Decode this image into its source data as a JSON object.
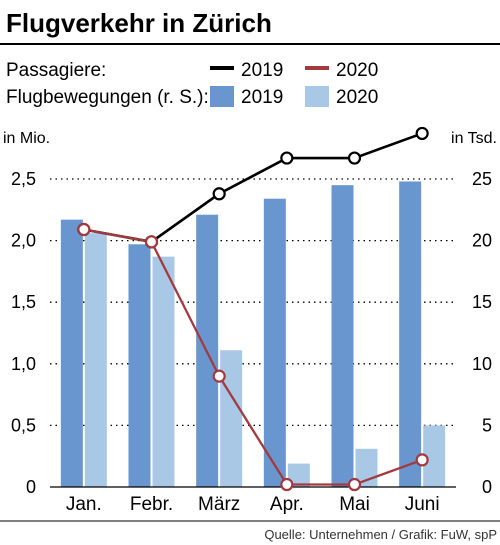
{
  "chart_data": {
    "type": "bar",
    "title": "Flugverkehr in Zürich",
    "categories": [
      "Jan.",
      "Febr.",
      "März",
      "Apr.",
      "Mai",
      "Juni"
    ],
    "legend": {
      "passengers_label": "Passagiere:",
      "movements_label": "Flugbewegungen (r. S.):"
    },
    "y_left": {
      "unit": "in Mio.",
      "range": [
        0,
        2.5
      ],
      "ticks": [
        "0",
        "0,5",
        "1,0",
        "1,5",
        "2,0",
        "2,5"
      ]
    },
    "y_right": {
      "unit": "in Tsd.",
      "range": [
        0,
        25
      ],
      "ticks": [
        "0",
        "5",
        "10",
        "15",
        "20",
        "25"
      ]
    },
    "bar_series": [
      {
        "name": "2019",
        "color": "#6a96cf",
        "values": [
          21.7,
          19.7,
          22.1,
          23.4,
          24.5,
          24.8
        ]
      },
      {
        "name": "2020",
        "color": "#a9c8e6",
        "values": [
          20.6,
          18.7,
          11.1,
          1.9,
          3.1,
          5.0
        ]
      }
    ],
    "line_series": [
      {
        "name": "2019",
        "color": "#000000",
        "values": [
          2.09,
          1.99,
          2.38,
          2.67,
          2.67,
          2.87
        ]
      },
      {
        "name": "2020",
        "color": "#a33a3f",
        "values": [
          2.09,
          1.99,
          0.9,
          0.02,
          0.02,
          0.22
        ]
      }
    ],
    "grid": "dotted horizontal",
    "source": "Quelle: Unternehmen / Grafik: FuW, spP"
  }
}
